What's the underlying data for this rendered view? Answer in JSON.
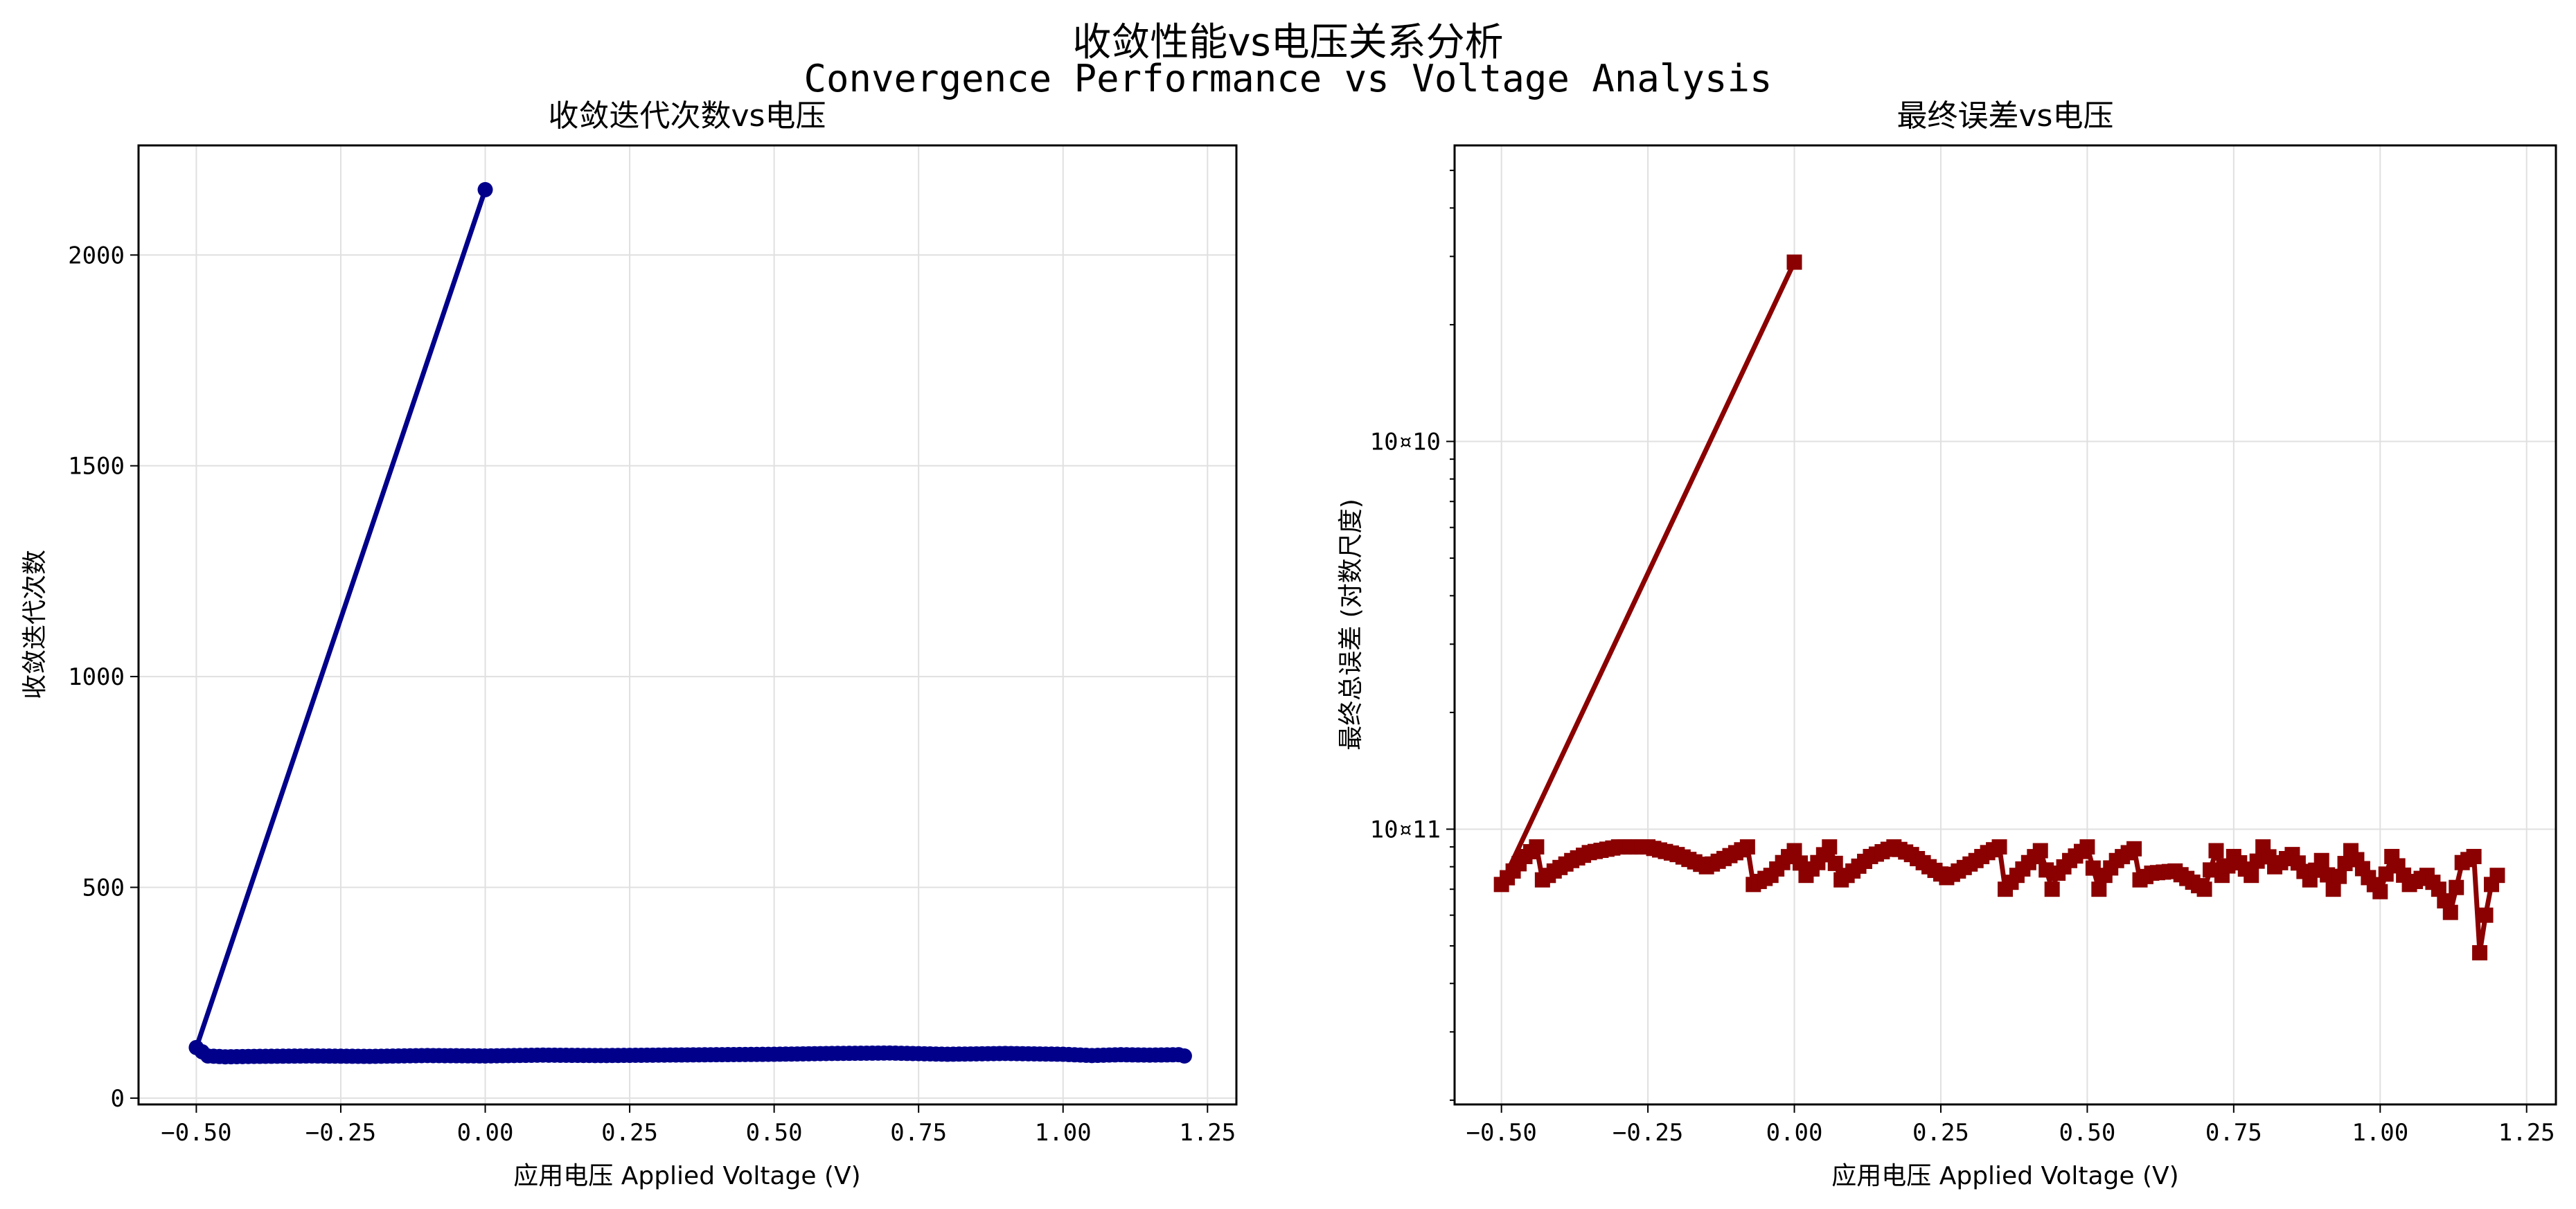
{
  "figure": {
    "title_line1": "收敛性能vs电压关系分析",
    "title_line2": "Convergence Performance vs Voltage Analysis"
  },
  "colors": {
    "left_series": "#00008B",
    "right_series": "#8B0000",
    "grid": "#e0e0e0"
  },
  "chart_data": [
    {
      "type": "line",
      "title": "收敛迭代次数vs电压",
      "xlabel": "应用电压 Applied Voltage (V)",
      "ylabel": "收敛迭代次数",
      "xlim": [
        -0.6,
        1.3
      ],
      "ylim": [
        -15,
        2260
      ],
      "x_ticks": [
        -0.5,
        -0.25,
        0.0,
        0.25,
        0.5,
        0.75,
        1.0,
        1.25
      ],
      "x_tick_labels": [
        "−0.50",
        "−0.25",
        "0.00",
        "0.25",
        "0.50",
        "0.75",
        "1.00",
        "1.25"
      ],
      "y_ticks": [
        0,
        500,
        1000,
        1500,
        2000
      ],
      "y_tick_labels": [
        "0",
        "500",
        "1000",
        "1500",
        "2000"
      ],
      "grid": true,
      "marker": "circle",
      "series": [
        {
          "color": "#00008B",
          "x": [
            0.0,
            -0.5,
            -0.48,
            -0.45,
            -0.4,
            -0.3,
            -0.2,
            -0.1,
            0.0,
            0.1,
            0.2,
            0.3,
            0.4,
            0.5,
            0.6,
            0.7,
            0.8,
            0.9,
            1.0,
            1.05,
            1.1,
            1.15,
            1.2,
            1.21
          ],
          "y": [
            2155,
            120,
            100,
            98,
            99,
            100,
            99,
            101,
            100,
            102,
            101,
            102,
            103,
            104,
            106,
            107,
            104,
            106,
            104,
            101,
            103,
            102,
            103,
            100
          ]
        }
      ]
    },
    {
      "type": "line",
      "title": "最终误差vs电压",
      "xlabel": "应用电压 Applied Voltage (V)",
      "ylabel": "最终总误差 (对数尺度)",
      "xlim": [
        -0.58,
        1.3
      ],
      "y_scale": "log",
      "y_tick_labels": [
        "10¤10",
        "10¤11"
      ],
      "grid": true,
      "marker": "square",
      "series": [
        {
          "color": "#8B0000",
          "x": [
            0.0,
            -0.5,
            -0.48,
            -0.46,
            -0.44,
            -0.43,
            -0.41,
            -0.38,
            -0.35,
            -0.3,
            -0.25,
            -0.2,
            -0.15,
            -0.12,
            -0.08,
            -0.07,
            -0.04,
            -0.02,
            0.0,
            0.02,
            0.04,
            0.06,
            0.08,
            0.1,
            0.13,
            0.17,
            0.2,
            0.23,
            0.26,
            0.28,
            0.31,
            0.33,
            0.35,
            0.36,
            0.38,
            0.4,
            0.42,
            0.44,
            0.45,
            0.47,
            0.5,
            0.52,
            0.53,
            0.55,
            0.58,
            0.59,
            0.61,
            0.65,
            0.68,
            0.7,
            0.72,
            0.73,
            0.75,
            0.78,
            0.8,
            0.82,
            0.85,
            0.88,
            0.9,
            0.92,
            0.95,
            0.98,
            1.0,
            1.02,
            1.05,
            1.08,
            1.1,
            1.12,
            1.14,
            1.16,
            1.17,
            1.18,
            1.19,
            1.2
          ],
          "y": [
            2.9e-10,
            7.2e-12,
            7.8e-12,
            8.5e-12,
            9e-12,
            7.4e-12,
            7.8e-12,
            8.3e-12,
            8.7e-12,
            9e-12,
            9e-12,
            8.6e-12,
            8e-12,
            8.4e-12,
            9e-12,
            7.2e-12,
            7.6e-12,
            8.2e-12,
            8.8e-12,
            7.6e-12,
            8.2e-12,
            9e-12,
            7.4e-12,
            7.8e-12,
            8.5e-12,
            9e-12,
            8.6e-12,
            8e-12,
            7.5e-12,
            7.8e-12,
            8.3e-12,
            8.7e-12,
            9e-12,
            7e-12,
            7.6e-12,
            8.2e-12,
            8.8e-12,
            7e-12,
            7.7e-12,
            8.3e-12,
            9e-12,
            7e-12,
            7.6e-12,
            8.3e-12,
            8.9e-12,
            7.4e-12,
            7.7e-12,
            7.8e-12,
            7.3e-12,
            7e-12,
            8.8e-12,
            7.6e-12,
            8.5e-12,
            7.6e-12,
            9e-12,
            8e-12,
            8.6e-12,
            7.4e-12,
            8.3e-12,
            7e-12,
            8.8e-12,
            7.5e-12,
            6.9e-12,
            8.5e-12,
            7.2e-12,
            7.6e-12,
            7e-12,
            6.1e-12,
            8.2e-12,
            8.5e-12,
            4.8e-12,
            6e-12,
            7.2e-12,
            7.6e-12
          ]
        }
      ]
    }
  ]
}
